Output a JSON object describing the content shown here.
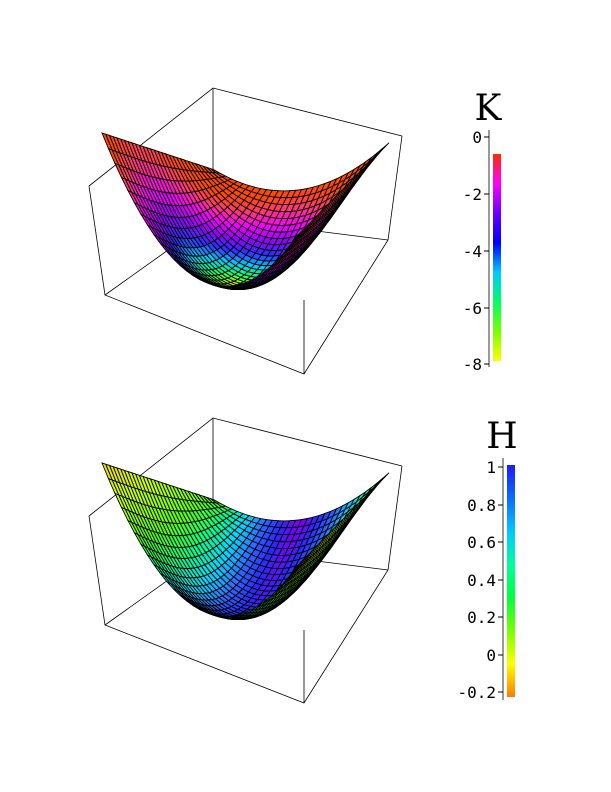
{
  "plots": [
    {
      "id": "gaussian-curvature",
      "legend_title": "K",
      "colorbar": {
        "ticks": [
          "0",
          "-2",
          "-4",
          "-6",
          "-8"
        ],
        "gradient": [
          "#ff2a00",
          "#ff00ff",
          "#6a00ff",
          "#0000ff",
          "#00c8ff",
          "#00ff64",
          "#78ff00",
          "#ffff00"
        ]
      },
      "surface_palette": [
        "#ffee00",
        "#7aff00",
        "#00ff8a",
        "#00c8ff",
        "#2e2eff",
        "#9a00ff",
        "#ff00ff",
        "#ff3a6e",
        "#ff4a00"
      ]
    },
    {
      "id": "mean-curvature",
      "legend_title": "H",
      "colorbar": {
        "ticks": [
          "1",
          "0.8",
          "0.6",
          "0.4",
          "0.2",
          "0",
          "-0.2"
        ],
        "gradient": [
          "#1a1aff",
          "#0a6cff",
          "#00c8ff",
          "#00ff9a",
          "#00ff3c",
          "#78ff00",
          "#ffff00",
          "#ff7a00"
        ]
      },
      "surface_palette": [
        "#ffd000",
        "#c8ff00",
        "#5aff00",
        "#00ff8a",
        "#00d8ff",
        "#2a6aff",
        "#2a2aff",
        "#7a00ff"
      ]
    }
  ]
}
